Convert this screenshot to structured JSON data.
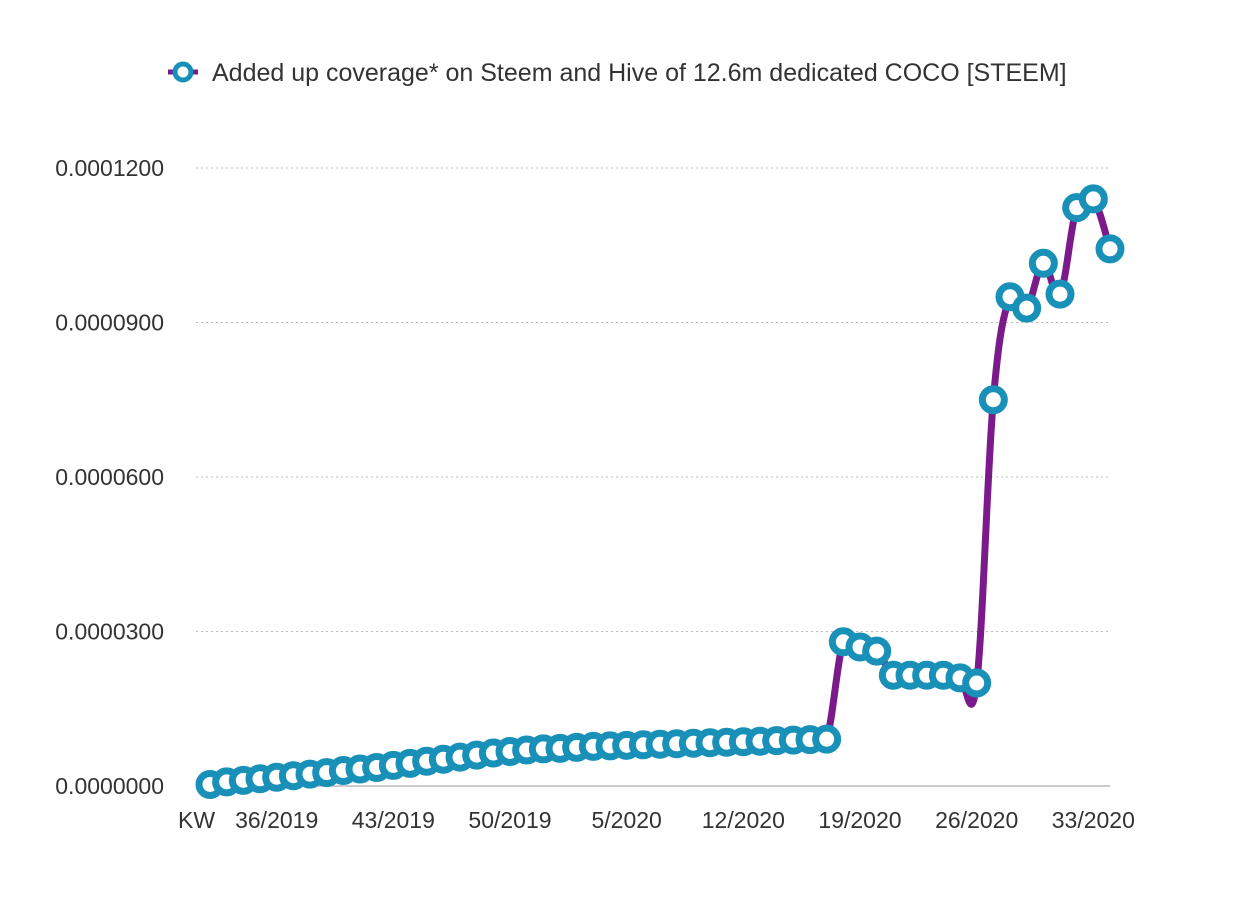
{
  "chart_data": {
    "type": "line",
    "legend": {
      "position": "top-center",
      "label": "Added up coverage* on Steem and Hive of 12.6m dedicated COCO [STEEM]"
    },
    "x_axis": {
      "lead_label": "KW",
      "tick_labels": [
        {
          "index": 4,
          "label": "36/2019"
        },
        {
          "index": 11,
          "label": "43/2019"
        },
        {
          "index": 18,
          "label": "50/2019"
        },
        {
          "index": 25,
          "label": "5/2020"
        },
        {
          "index": 32,
          "label": "12/2020"
        },
        {
          "index": 39,
          "label": "19/2020"
        },
        {
          "index": 46,
          "label": "26/2020"
        },
        {
          "index": 53,
          "label": "33/2020"
        }
      ]
    },
    "y_axis": {
      "ylim": [
        0,
        0.00012
      ],
      "ticks": [
        {
          "value": 0,
          "label": "0.0000000"
        },
        {
          "value": 3e-05,
          "label": "0.0000300"
        },
        {
          "value": 6e-05,
          "label": "0.0000600"
        },
        {
          "value": 9e-05,
          "label": "0.0000900"
        },
        {
          "value": 0.00012,
          "label": "0.0001200"
        }
      ],
      "grid": true
    },
    "series": [
      {
        "line_color": "#7b1a8a",
        "marker_color": "#1890b8",
        "values": [
          3e-07,
          8e-07,
          1.1e-06,
          1.4e-06,
          1.7e-06,
          2e-06,
          2.3e-06,
          2.6e-06,
          3e-06,
          3.3e-06,
          3.6e-06,
          4e-06,
          4.4e-06,
          4.8e-06,
          5.2e-06,
          5.6e-06,
          6e-06,
          6.4e-06,
          6.7e-06,
          7e-06,
          7.2e-06,
          7.3e-06,
          7.5e-06,
          7.7e-06,
          7.8e-06,
          7.9e-06,
          8e-06,
          8.1e-06,
          8.2e-06,
          8.3e-06,
          8.4e-06,
          8.5e-06,
          8.6e-06,
          8.7e-06,
          8.8e-06,
          8.9e-06,
          9e-06,
          9.1e-06,
          2.8e-05,
          2.7e-05,
          2.62e-05,
          2.15e-05,
          2.15e-05,
          2.15e-05,
          2.15e-05,
          2.1e-05,
          2e-05,
          7.5e-05,
          9.5e-05,
          9.28e-05,
          0.0001015,
          9.55e-05,
          0.0001123,
          0.000114,
          0.0001043
        ]
      }
    ]
  }
}
